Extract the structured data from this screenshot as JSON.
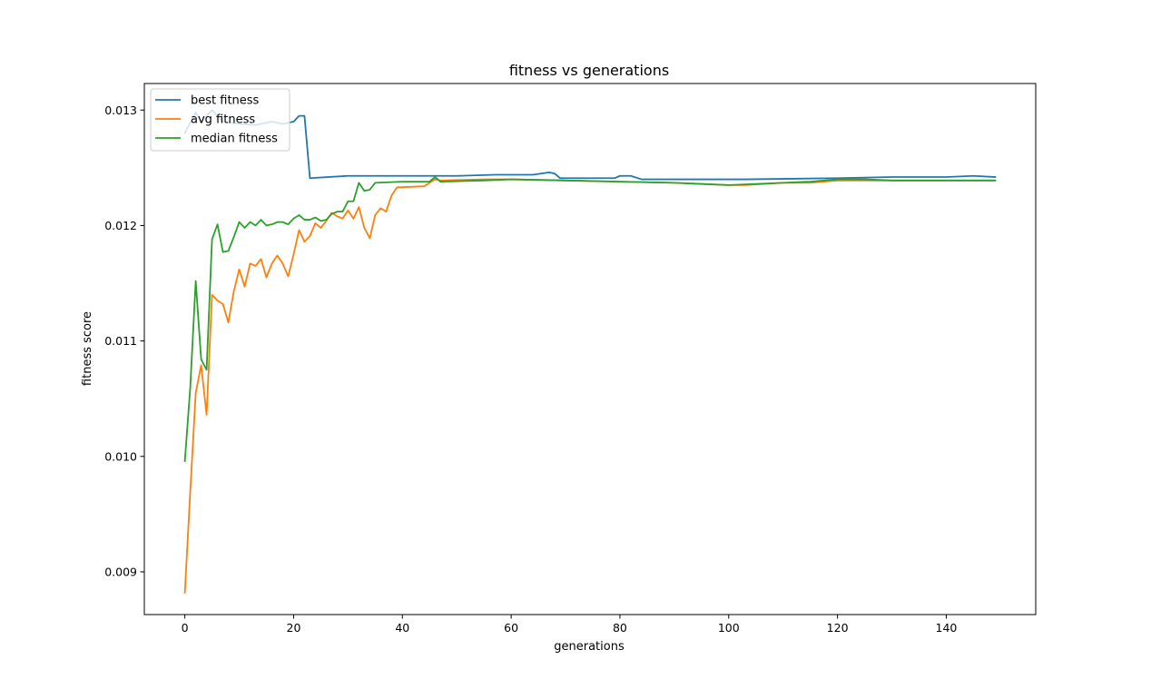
{
  "chart_data": {
    "type": "line",
    "title": "fitness vs generations",
    "xlabel": "generations",
    "ylabel": "fitness score",
    "xlim": [
      -7.45,
      156.45
    ],
    "ylim": [
      0.00863,
      0.01323
    ],
    "xticks": [
      0,
      20,
      40,
      60,
      80,
      100,
      120,
      140
    ],
    "xtick_labels": [
      "0",
      "20",
      "40",
      "60",
      "80",
      "100",
      "120",
      "140"
    ],
    "yticks": [
      0.009,
      0.01,
      0.011,
      0.012,
      0.013
    ],
    "ytick_labels": [
      "0.009",
      "0.010",
      "0.011",
      "0.012",
      "0.013"
    ],
    "grid": false,
    "legend_position": "top-left",
    "series": [
      {
        "name": "best fitness",
        "color": "#1f77b4",
        "points": [
          [
            0,
            0.0128
          ],
          [
            2,
            0.01298
          ],
          [
            3,
            0.0129
          ],
          [
            5,
            0.013
          ],
          [
            7,
            0.0129
          ],
          [
            10,
            0.01288
          ],
          [
            13,
            0.01287
          ],
          [
            16,
            0.0129
          ],
          [
            18,
            0.01288
          ],
          [
            20,
            0.0129
          ],
          [
            21,
            0.01295
          ],
          [
            22,
            0.01295
          ],
          [
            23,
            0.01241
          ],
          [
            30,
            0.01243
          ],
          [
            40,
            0.01243
          ],
          [
            50,
            0.01243
          ],
          [
            57,
            0.01244
          ],
          [
            64,
            0.01244
          ],
          [
            67,
            0.01246
          ],
          [
            68,
            0.01245
          ],
          [
            69,
            0.01241
          ],
          [
            79,
            0.01241
          ],
          [
            80,
            0.01243
          ],
          [
            82,
            0.01243
          ],
          [
            84,
            0.0124
          ],
          [
            90,
            0.0124
          ],
          [
            100,
            0.0124
          ],
          [
            103,
            0.0124
          ],
          [
            120,
            0.01241
          ],
          [
            130,
            0.01242
          ],
          [
            140,
            0.01242
          ],
          [
            145,
            0.01243
          ],
          [
            149,
            0.01242
          ]
        ]
      },
      {
        "name": "avg fitness",
        "color": "#ff7f0e",
        "points": [
          [
            0,
            0.00882
          ],
          [
            1,
            0.0097
          ],
          [
            2,
            0.01055
          ],
          [
            3,
            0.01079
          ],
          [
            4,
            0.01036
          ],
          [
            5,
            0.0114
          ],
          [
            6,
            0.01135
          ],
          [
            7,
            0.01132
          ],
          [
            8,
            0.01116
          ],
          [
            9,
            0.01143
          ],
          [
            10,
            0.01162
          ],
          [
            11,
            0.01147
          ],
          [
            12,
            0.01167
          ],
          [
            13,
            0.01165
          ],
          [
            14,
            0.01171
          ],
          [
            15,
            0.01155
          ],
          [
            16,
            0.01167
          ],
          [
            17,
            0.01174
          ],
          [
            18,
            0.01167
          ],
          [
            19,
            0.01156
          ],
          [
            20,
            0.01175
          ],
          [
            21,
            0.01196
          ],
          [
            22,
            0.01186
          ],
          [
            23,
            0.01191
          ],
          [
            24,
            0.01202
          ],
          [
            25,
            0.01198
          ],
          [
            26,
            0.01204
          ],
          [
            27,
            0.01211
          ],
          [
            28,
            0.01208
          ],
          [
            29,
            0.01206
          ],
          [
            30,
            0.01213
          ],
          [
            31,
            0.01206
          ],
          [
            32,
            0.01216
          ],
          [
            33,
            0.01198
          ],
          [
            34,
            0.01189
          ],
          [
            35,
            0.01209
          ],
          [
            36,
            0.01215
          ],
          [
            37,
            0.01212
          ],
          [
            38,
            0.01226
          ],
          [
            39,
            0.01233
          ],
          [
            44,
            0.01234
          ],
          [
            45,
            0.01237
          ],
          [
            46,
            0.0124
          ],
          [
            47,
            0.01239
          ],
          [
            55,
            0.0124
          ],
          [
            60,
            0.0124
          ],
          [
            70,
            0.01239
          ],
          [
            80,
            0.01238
          ],
          [
            90,
            0.01237
          ],
          [
            100,
            0.01235
          ],
          [
            103,
            0.01235
          ],
          [
            110,
            0.01237
          ],
          [
            115,
            0.01237
          ],
          [
            120,
            0.01239
          ],
          [
            130,
            0.01239
          ],
          [
            140,
            0.01239
          ],
          [
            149,
            0.01239
          ]
        ]
      },
      {
        "name": "median fitness",
        "color": "#2ca02c",
        "points": [
          [
            0,
            0.00996
          ],
          [
            1,
            0.0106
          ],
          [
            2,
            0.01152
          ],
          [
            3,
            0.01084
          ],
          [
            4,
            0.01075
          ],
          [
            5,
            0.01188
          ],
          [
            6,
            0.01201
          ],
          [
            7,
            0.01177
          ],
          [
            8,
            0.01178
          ],
          [
            9,
            0.0119
          ],
          [
            10,
            0.01203
          ],
          [
            11,
            0.01198
          ],
          [
            12,
            0.01203
          ],
          [
            13,
            0.012
          ],
          [
            14,
            0.01205
          ],
          [
            15,
            0.012
          ],
          [
            16,
            0.01201
          ],
          [
            17,
            0.01203
          ],
          [
            18,
            0.01203
          ],
          [
            19,
            0.01201
          ],
          [
            20,
            0.01206
          ],
          [
            21,
            0.01209
          ],
          [
            22,
            0.01205
          ],
          [
            23,
            0.01205
          ],
          [
            24,
            0.01207
          ],
          [
            25,
            0.01204
          ],
          [
            26,
            0.01205
          ],
          [
            27,
            0.0121
          ],
          [
            28,
            0.01212
          ],
          [
            29,
            0.01212
          ],
          [
            30,
            0.01221
          ],
          [
            31,
            0.01221
          ],
          [
            32,
            0.01237
          ],
          [
            33,
            0.0123
          ],
          [
            34,
            0.01231
          ],
          [
            35,
            0.01237
          ],
          [
            40,
            0.01238
          ],
          [
            45,
            0.01238
          ],
          [
            46,
            0.01242
          ],
          [
            47,
            0.01238
          ],
          [
            55,
            0.01239
          ],
          [
            60,
            0.0124
          ],
          [
            70,
            0.01239
          ],
          [
            80,
            0.01238
          ],
          [
            90,
            0.01237
          ],
          [
            100,
            0.01235
          ],
          [
            105,
            0.01236
          ],
          [
            110,
            0.01237
          ],
          [
            115,
            0.01238
          ],
          [
            120,
            0.0124
          ],
          [
            125,
            0.0124
          ],
          [
            130,
            0.01239
          ],
          [
            140,
            0.01239
          ],
          [
            149,
            0.01239
          ]
        ]
      }
    ]
  }
}
